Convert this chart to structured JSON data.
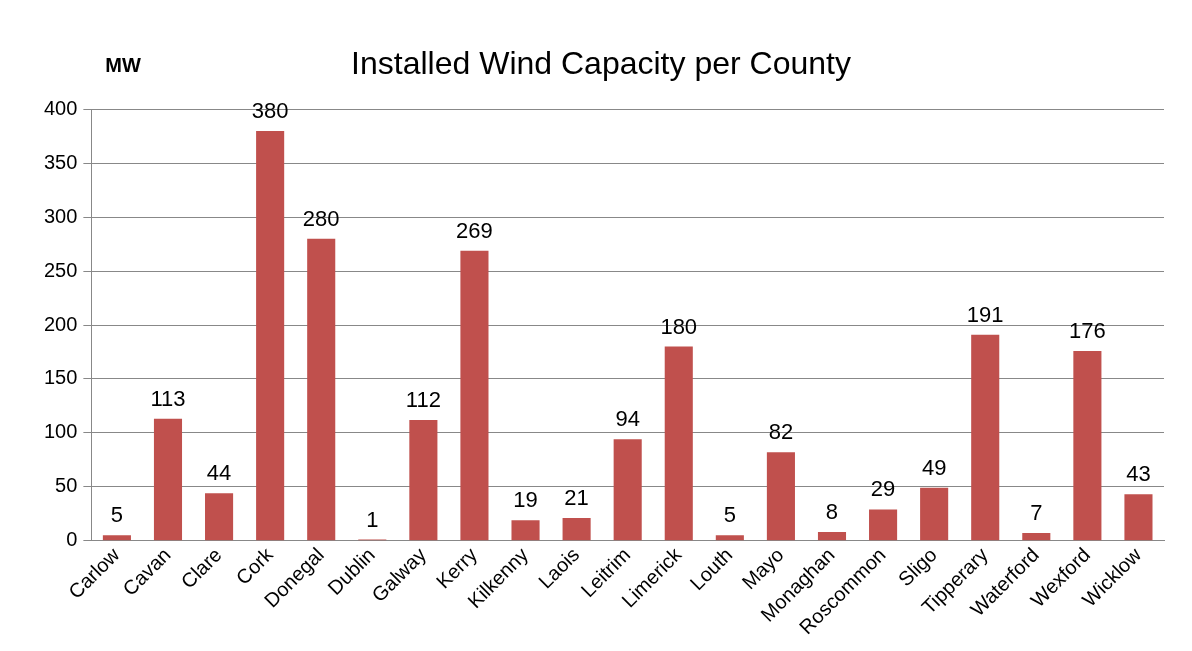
{
  "chart_data": {
    "type": "bar",
    "title": "Installed Wind Capacity per County",
    "ylabel": "MW",
    "categories": [
      "Carlow",
      "Cavan",
      "Clare",
      "Cork",
      "Donegal",
      "Dublin",
      "Galway",
      "Kerry",
      "Kilkenny",
      "Laois",
      "Leitrim",
      "Limerick",
      "Louth",
      "Mayo",
      "Monaghan",
      "Roscommon",
      "Sligo",
      "Tipperary",
      "Waterford",
      "Wexford",
      "Wicklow"
    ],
    "values": [
      5,
      113,
      44,
      380,
      280,
      1,
      112,
      269,
      19,
      21,
      94,
      180,
      5,
      82,
      8,
      29,
      49,
      191,
      7,
      176,
      43
    ],
    "color": "#c0504d",
    "ylim": [
      0,
      400
    ],
    "yticks": [
      0,
      50,
      100,
      150,
      200,
      250,
      300,
      350,
      400
    ],
    "grid": "y",
    "data_labels": true,
    "legend": false
  }
}
